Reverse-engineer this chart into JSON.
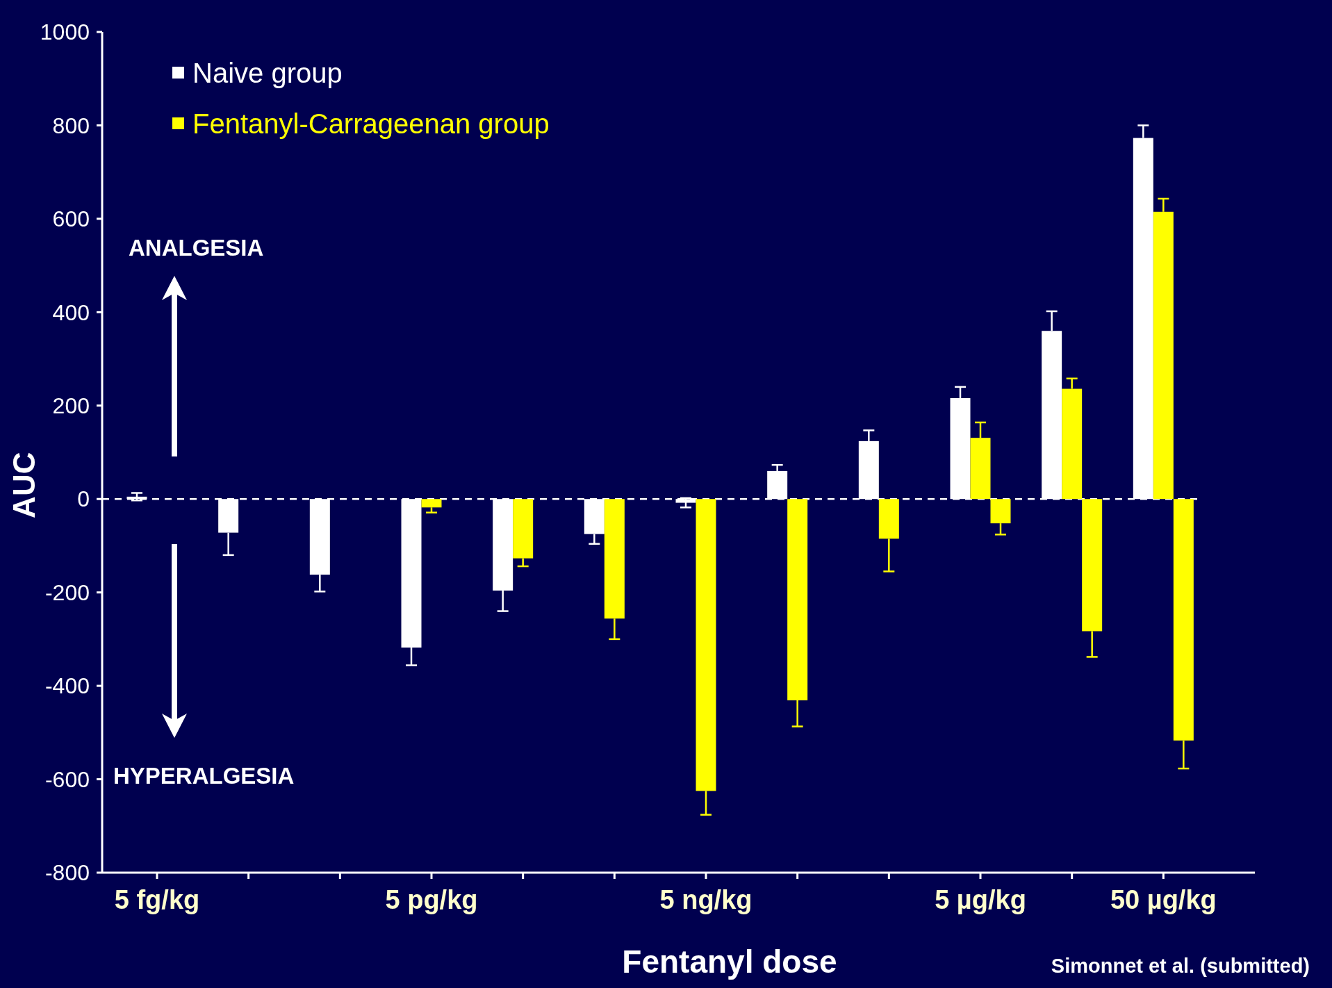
{
  "chart_data": {
    "type": "bar",
    "xlabel": "Fentanyl dose",
    "ylabel": "AUC",
    "categories": [
      "5 fg/kg",
      null,
      null,
      "5 pg/kg",
      null,
      null,
      "5 ng/kg",
      null,
      null,
      "5 µg/kg",
      null,
      "50 µg/kg"
    ],
    "series": [
      {
        "name": "Naive group",
        "color": "#ffffff",
        "values": [
          5,
          -72,
          -162,
          -318,
          -196,
          -75,
          -8,
          60,
          124,
          216,
          360,
          773
        ],
        "errors": [
          8,
          [
            -120,
            -72
          ],
          [
            -198,
            -162
          ],
          [
            -356,
            -318
          ],
          [
            -240,
            -196
          ],
          [
            -96,
            -75
          ],
          10,
          [
            60,
            73
          ],
          [
            124,
            147
          ],
          [
            216,
            240
          ],
          [
            360,
            402
          ],
          [
            773,
            800
          ]
        ]
      },
      {
        "name": "Fentanyl-Carrageenan group",
        "color": "#ffff00",
        "values": [
          null,
          null,
          null,
          -18,
          -127,
          -256,
          -625,
          -431,
          -85,
          131,
          236,
          615
        ],
        "errors": [
          null,
          null,
          null,
          [
            -29,
            -18
          ],
          [
            -144,
            -127
          ],
          [
            -300,
            -256
          ],
          [
            -676,
            -625
          ],
          [
            -487,
            -431
          ],
          [
            -155,
            -85
          ],
          [
            131,
            164
          ],
          [
            236,
            258
          ],
          [
            615,
            643
          ]
        ]
      },
      {
        "color": "#ffff00",
        "values": [
          null,
          null,
          null,
          null,
          null,
          null,
          null,
          null,
          null,
          -52,
          -283,
          -517
        ],
        "errors": [
          null,
          null,
          null,
          null,
          null,
          null,
          null,
          null,
          null,
          [
            -76,
            -52
          ],
          [
            -338,
            -283
          ],
          [
            -577,
            -517
          ]
        ]
      }
    ],
    "ylim": [
      -800,
      1000
    ],
    "yticks": [
      -800,
      -600,
      -400,
      -200,
      0,
      200,
      400,
      600,
      800,
      1000
    ],
    "ref_lines": [
      {
        "axis": "y",
        "value": 0,
        "color": "#ffffff",
        "line_style": "dashed"
      }
    ],
    "legend": "top left",
    "annotations": [
      "ANALGESIA",
      "HYPERALGESIA",
      "Simonnet et al. (submitted)"
    ]
  }
}
